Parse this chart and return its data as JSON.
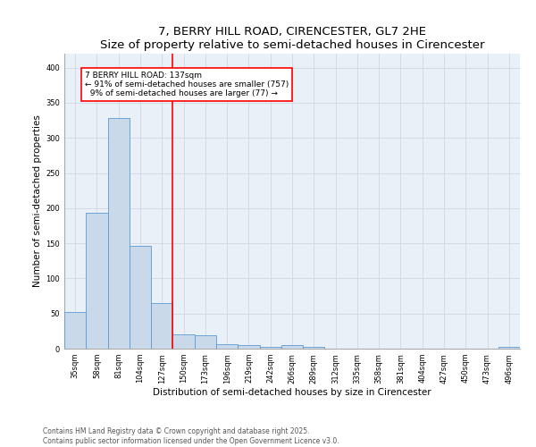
{
  "title": "7, BERRY HILL ROAD, CIRENCESTER, GL7 2HE",
  "subtitle": "Size of property relative to semi-detached houses in Cirencester",
  "xlabel": "Distribution of semi-detached houses by size in Cirencester",
  "ylabel": "Number of semi-detached properties",
  "categories": [
    "35sqm",
    "58sqm",
    "81sqm",
    "104sqm",
    "127sqm",
    "150sqm",
    "173sqm",
    "196sqm",
    "219sqm",
    "242sqm",
    "266sqm",
    "289sqm",
    "312sqm",
    "335sqm",
    "358sqm",
    "381sqm",
    "404sqm",
    "427sqm",
    "450sqm",
    "473sqm",
    "496sqm"
  ],
  "bar_values": [
    52,
    193,
    328,
    147,
    65,
    20,
    19,
    7,
    5,
    3,
    5,
    3,
    0,
    0,
    0,
    0,
    0,
    0,
    0,
    0,
    2
  ],
  "bar_color": "#c9d9ea",
  "bar_edge_color": "#5b9bd5",
  "property_sqm": 137,
  "vline_x": 4.5,
  "annotation_text": "7 BERRY HILL ROAD: 137sqm\n← 91% of semi-detached houses are smaller (757)\n  9% of semi-detached houses are larger (77) →",
  "annotation_box_color": "white",
  "annotation_box_edge_color": "red",
  "ylim": [
    0,
    420
  ],
  "yticks": [
    0,
    50,
    100,
    150,
    200,
    250,
    300,
    350,
    400
  ],
  "grid_color": "#d0d8e4",
  "background_color": "#eaf0f8",
  "footer_text": "Contains HM Land Registry data © Crown copyright and database right 2025.\nContains public sector information licensed under the Open Government Licence v3.0.",
  "title_fontsize": 9.5,
  "subtitle_fontsize": 8,
  "xlabel_fontsize": 7.5,
  "ylabel_fontsize": 7.5,
  "tick_fontsize": 6,
  "annotation_fontsize": 6.5,
  "footer_fontsize": 5.5
}
